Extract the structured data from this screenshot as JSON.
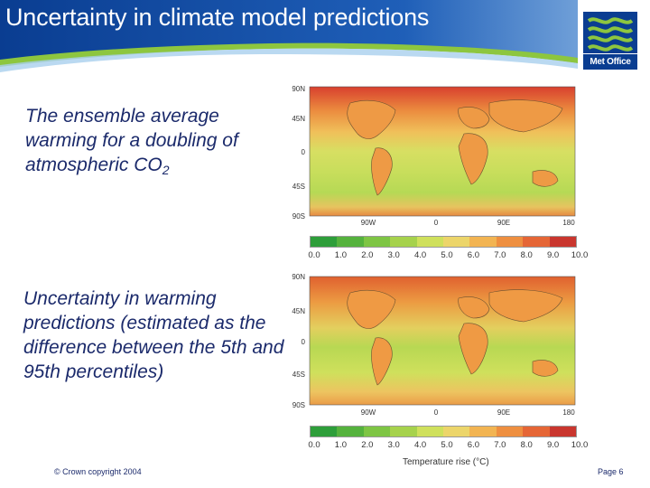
{
  "header": {
    "title": "Uncertainty in climate model predictions",
    "logo_text": "Met Office"
  },
  "panels": [
    {
      "description_main": "The ensemble average warming for a doubling of atmospheric CO",
      "description_sub": "2",
      "lat_labels": [
        "90N",
        "45N",
        "0",
        "45S",
        "90S"
      ],
      "lon_labels": [
        "90W",
        "0",
        "90E",
        "180"
      ]
    },
    {
      "description_main": "Uncertainty in warming predictions (estimated as the difference between the 5th and 95th percentiles)",
      "lat_labels": [
        "90N",
        "45N",
        "0",
        "45S",
        "90S"
      ],
      "lon_labels": [
        "90W",
        "0",
        "90E",
        "180"
      ]
    }
  ],
  "colorbar": {
    "labels": [
      "0.0",
      "1.0",
      "2.0",
      "3.0",
      "4.0",
      "5.0",
      "6.0",
      "7.0",
      "8.0",
      "9.0",
      "10.0"
    ],
    "colors": [
      "#2e9e3a",
      "#55b23d",
      "#7ec544",
      "#a6d24c",
      "#cfe05c",
      "#ecd56a",
      "#f2b452",
      "#ee8f40",
      "#e56636",
      "#c9362e"
    ],
    "unit_label": "Temperature rise (°C)"
  },
  "footer": {
    "copyright": "© Crown copyright 2004",
    "page": "Page 6"
  },
  "colors": {
    "header_blue": "#0a3d91",
    "accent_green": "#8dc63f",
    "text_navy": "#1b2a6b"
  }
}
